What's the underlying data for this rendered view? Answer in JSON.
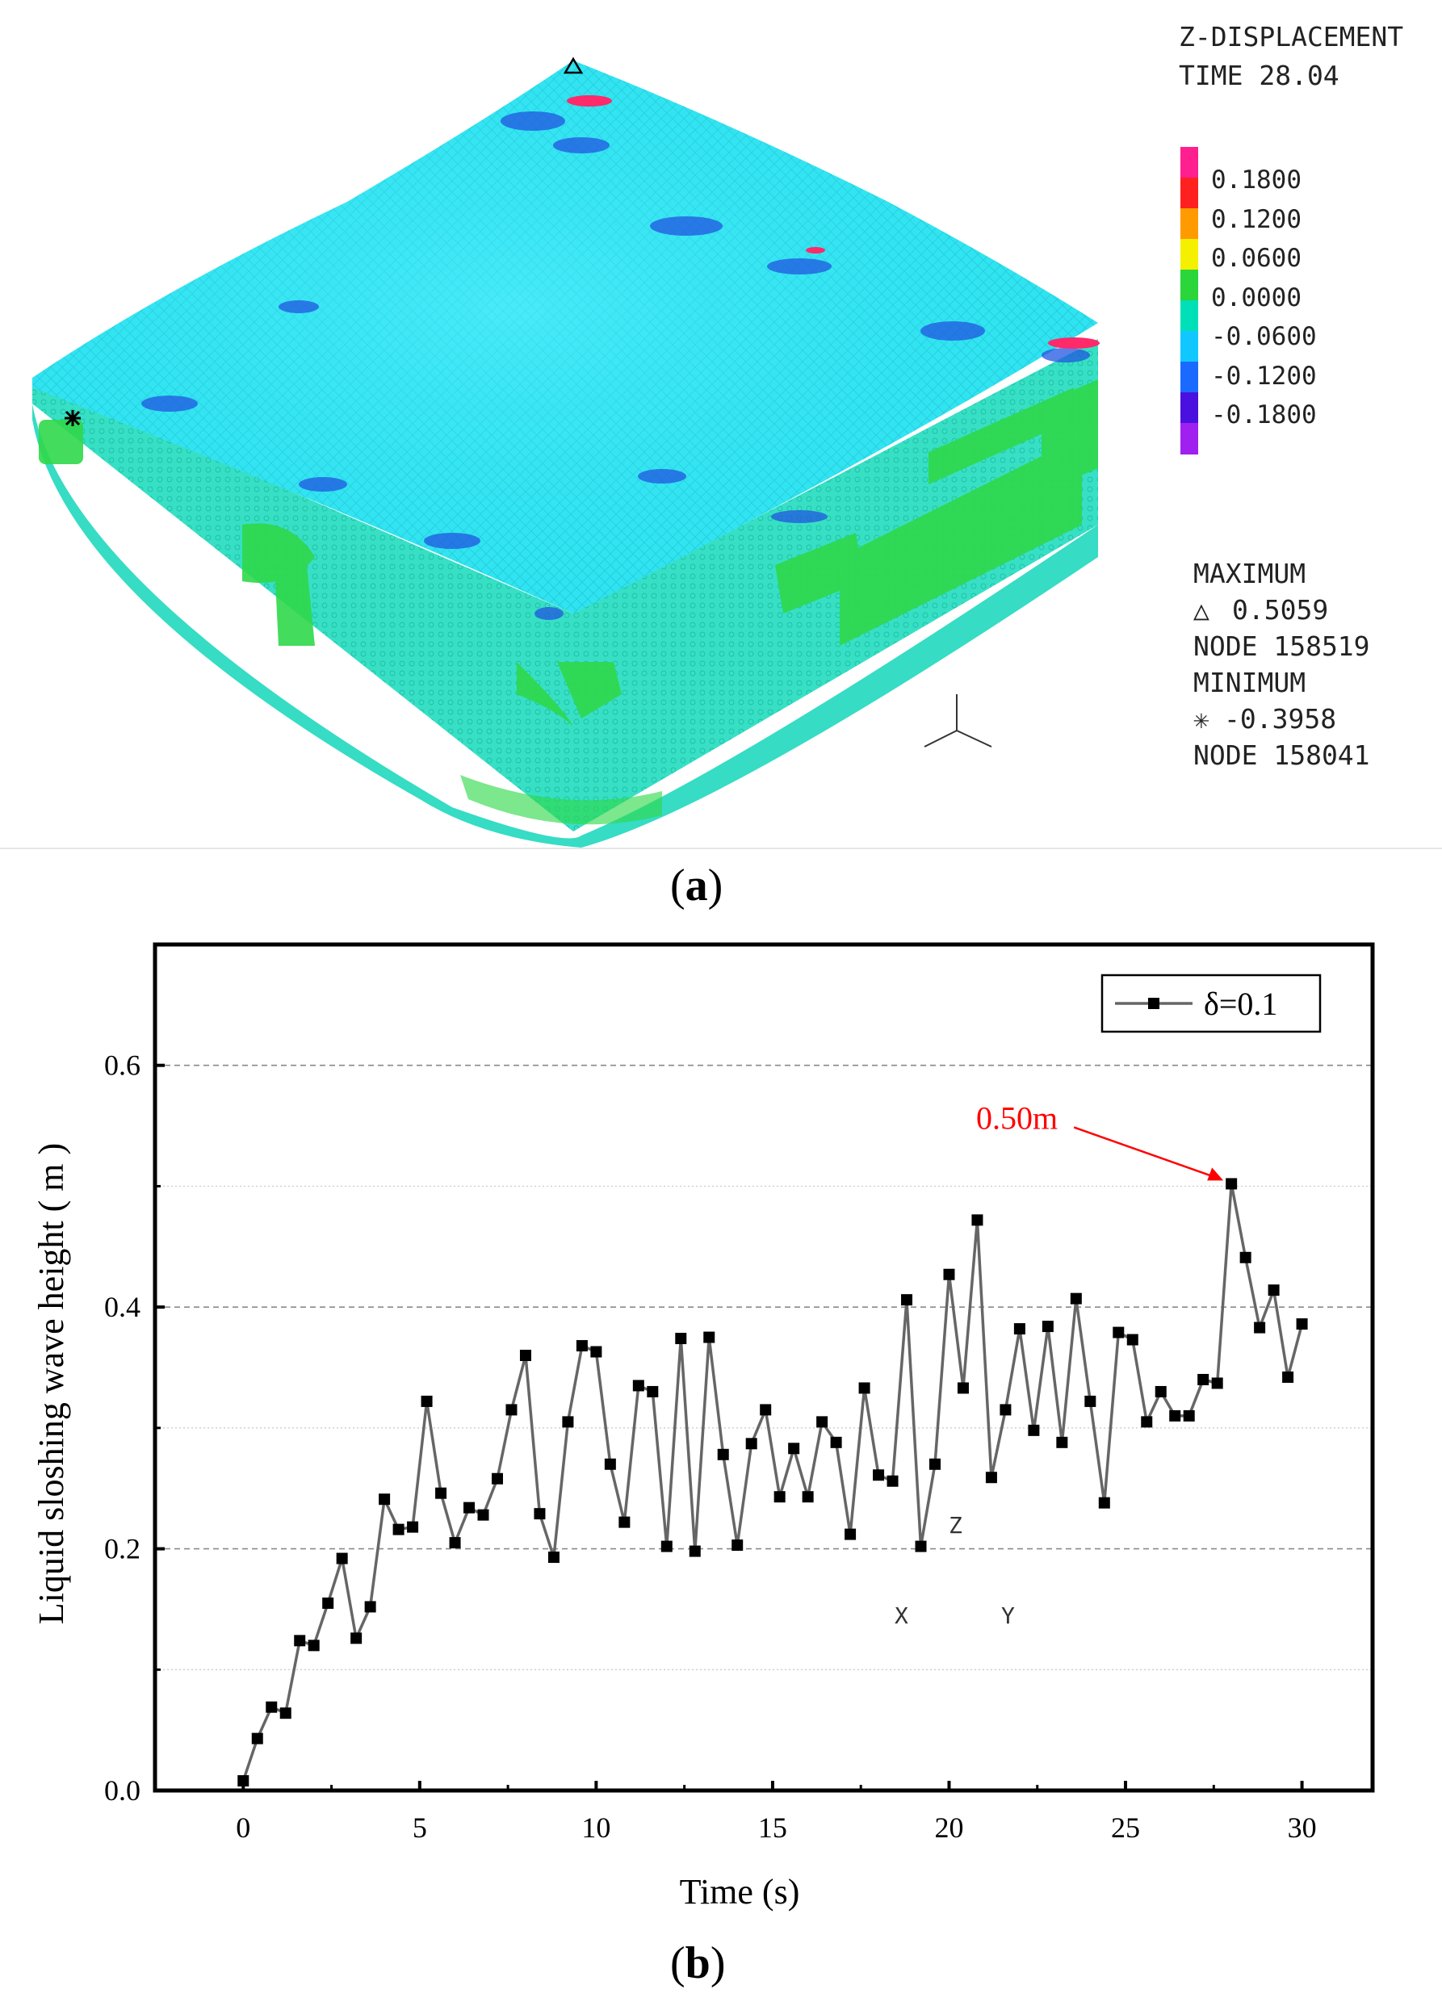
{
  "panel_a": {
    "caption_letter": "a",
    "result_title": "Z-DISPLACEMENT",
    "time_label": "TIME 28.04",
    "colorbar_ticks": [
      "0.1800",
      "0.1200",
      "0.0600",
      "0.0000",
      "-0.0600",
      "-0.1200",
      "-0.1800"
    ],
    "colorbar_colors": [
      "#ff1f8f",
      "#ff2020",
      "#ff9a00",
      "#f4f000",
      "#2ad63a",
      "#00e0b8",
      "#10c8ff",
      "#1a6aff",
      "#4a10e0",
      "#a020f0"
    ],
    "maximum_label": "MAXIMUM",
    "maximum_value": "0.5059",
    "maximum_node": "NODE 158519",
    "minimum_label": "MINIMUM",
    "minimum_value": "-0.3958",
    "minimum_node": "NODE 158041",
    "axis_z": "Z",
    "axis_x": "X",
    "axis_y": "Y",
    "mesh_colors": {
      "top": "#2fe3f0",
      "side": "#39e2c6",
      "green": "#2fd84a",
      "blue": "#2255e0",
      "red": "#ff2a6a"
    }
  },
  "panel_b": {
    "caption_letter": "b",
    "annotation": "0.50m",
    "annotation_color": "#ff0000",
    "series_color": "#666666",
    "chart_data": {
      "type": "line",
      "title": "",
      "xlabel": "Time (s)",
      "ylabel": "Liquid sloshing wave height ( m )",
      "xlim": [
        -2.5,
        32
      ],
      "ylim": [
        0,
        0.7
      ],
      "xticks": [
        "0",
        "5",
        "10",
        "15",
        "20",
        "25",
        "30"
      ],
      "yticks": [
        "0.0",
        "0.2",
        "0.4",
        "0.6"
      ],
      "grid": "horizontal dashed at 0.2, 0.4, 0.6; dotted at 0.1, 0.3, 0.5",
      "legend": "top-right",
      "series": [
        {
          "name": "δ=0.1",
          "x": [
            0.0,
            0.4,
            0.8,
            1.2,
            1.6,
            2.0,
            2.4,
            2.8,
            3.2,
            3.6,
            4.0,
            4.4,
            4.8,
            5.2,
            5.6,
            6.0,
            6.4,
            6.8,
            7.2,
            7.6,
            8.0,
            8.4,
            8.8,
            9.2,
            9.6,
            10.0,
            10.4,
            10.8,
            11.2,
            11.6,
            12.0,
            12.4,
            12.8,
            13.2,
            13.6,
            14.0,
            14.4,
            14.8,
            15.2,
            15.6,
            16.0,
            16.4,
            16.8,
            17.2,
            17.6,
            18.0,
            18.4,
            18.8,
            19.2,
            19.6,
            20.0,
            20.4,
            20.8,
            21.2,
            21.6,
            22.0,
            22.4,
            22.8,
            23.2,
            23.6,
            24.0,
            24.4,
            24.8,
            25.2,
            25.6,
            26.0,
            26.4,
            26.8,
            27.2,
            27.6,
            28.0,
            28.4,
            28.8,
            29.2,
            29.6,
            30.0
          ],
          "y": [
            0.008,
            0.043,
            0.069,
            0.064,
            0.124,
            0.12,
            0.155,
            0.192,
            0.126,
            0.152,
            0.241,
            0.216,
            0.218,
            0.322,
            0.246,
            0.205,
            0.234,
            0.228,
            0.258,
            0.315,
            0.36,
            0.229,
            0.193,
            0.305,
            0.368,
            0.363,
            0.27,
            0.222,
            0.335,
            0.33,
            0.202,
            0.374,
            0.198,
            0.375,
            0.278,
            0.203,
            0.287,
            0.315,
            0.243,
            0.283,
            0.243,
            0.305,
            0.288,
            0.212,
            0.333,
            0.261,
            0.256,
            0.406,
            0.202,
            0.27,
            0.427,
            0.333,
            0.472,
            0.259,
            0.315,
            0.382,
            0.298,
            0.384,
            0.288,
            0.407,
            0.322,
            0.238,
            0.379,
            0.373,
            0.305,
            0.33,
            0.31,
            0.31,
            0.34,
            0.337,
            0.502,
            0.441,
            0.383,
            0.414,
            0.342,
            0.386
          ]
        }
      ]
    }
  }
}
